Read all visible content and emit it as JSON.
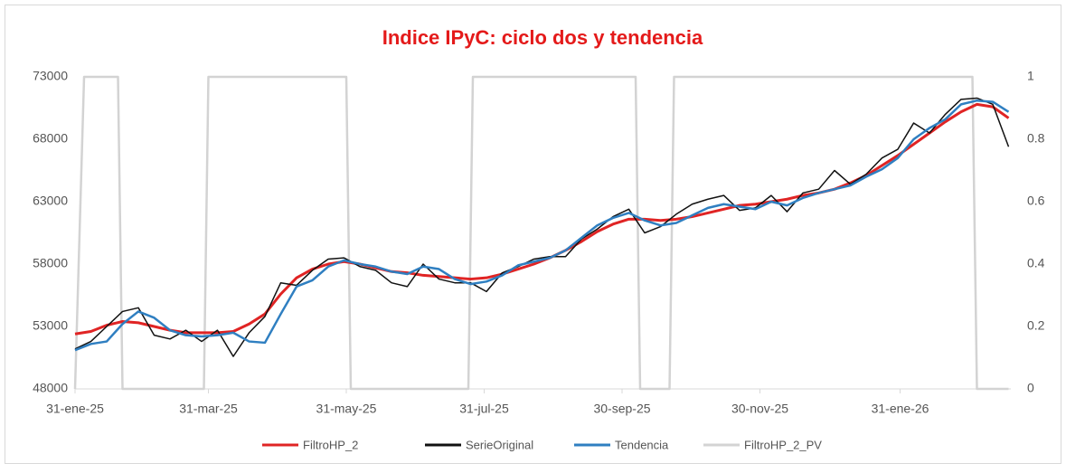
{
  "chart_data": {
    "type": "line",
    "title": "Indice IPyC:  ciclo dos y tendencia",
    "legend": "bottom",
    "grid": false,
    "x": [
      "2025-01-31",
      "2025-02-07",
      "2025-02-14",
      "2025-02-21",
      "2025-02-28",
      "2025-03-07",
      "2025-03-14",
      "2025-03-21",
      "2025-03-28",
      "2025-04-04",
      "2025-04-11",
      "2025-04-18",
      "2025-04-25",
      "2025-05-02",
      "2025-05-09",
      "2025-05-16",
      "2025-05-23",
      "2025-05-30",
      "2025-06-06",
      "2025-06-13",
      "2025-06-20",
      "2025-06-27",
      "2025-07-04",
      "2025-07-11",
      "2025-07-18",
      "2025-07-25",
      "2025-08-01",
      "2025-08-08",
      "2025-08-15",
      "2025-08-22",
      "2025-08-29",
      "2025-09-05",
      "2025-09-12",
      "2025-09-19",
      "2025-09-26",
      "2025-10-03",
      "2025-10-10",
      "2025-10-17",
      "2025-10-24",
      "2025-10-31",
      "2025-11-07",
      "2025-11-14",
      "2025-11-21",
      "2025-11-28",
      "2025-12-05",
      "2025-12-12",
      "2025-12-19",
      "2025-12-26",
      "2026-01-02",
      "2026-01-09",
      "2026-01-16",
      "2026-01-23",
      "2026-01-30",
      "2026-02-06",
      "2026-02-13",
      "2026-02-20",
      "2026-02-27",
      "2026-03-06",
      "2026-03-13",
      "2026-03-20"
    ],
    "xlim": [
      "2025-01-31",
      "2026-03-21"
    ],
    "xticks": [
      {
        "value": "2025-01-31",
        "label": "31-ene-25"
      },
      {
        "value": "2025-03-31",
        "label": "31-mar-25"
      },
      {
        "value": "2025-05-31",
        "label": "31-may-25"
      },
      {
        "value": "2025-07-31",
        "label": "31-jul-25"
      },
      {
        "value": "2025-09-30",
        "label": "30-sep-25"
      },
      {
        "value": "2025-11-30",
        "label": "30-nov-25"
      },
      {
        "value": "2026-01-31",
        "label": "31-ene-26"
      }
    ],
    "ylim": [
      48000,
      73000
    ],
    "yticks": [
      48000,
      53000,
      58000,
      63000,
      68000,
      73000
    ],
    "y2lim": [
      0,
      1
    ],
    "y2ticks": [
      0,
      0.2,
      0.4,
      0.6,
      0.8,
      1
    ],
    "series": [
      {
        "name": "FiltroHP_2",
        "color": "#e02424",
        "values": [
          52400,
          52600,
          53100,
          53400,
          53300,
          53000,
          52700,
          52500,
          52500,
          52500,
          52600,
          53200,
          54000,
          55600,
          56900,
          57600,
          58000,
          58200,
          58000,
          57700,
          57400,
          57300,
          57100,
          57000,
          56900,
          56800,
          56900,
          57200,
          57600,
          58000,
          58500,
          59100,
          59800,
          60600,
          61200,
          61600,
          61600,
          61500,
          61600,
          61800,
          62100,
          62400,
          62700,
          62800,
          63000,
          63200,
          63500,
          63700,
          64000,
          64500,
          65100,
          65900,
          66700,
          67600,
          68500,
          69400,
          70200,
          70800,
          70600,
          69700
        ]
      },
      {
        "name": "SerieOriginal",
        "color": "#111111",
        "values": [
          51200,
          51800,
          53000,
          54200,
          54500,
          52300,
          52000,
          52700,
          51800,
          52700,
          50600,
          52500,
          53800,
          56500,
          56300,
          57500,
          58400,
          58500,
          57800,
          57500,
          56500,
          56200,
          58000,
          56800,
          56500,
          56500,
          55800,
          57300,
          57800,
          58400,
          58600,
          58600,
          60000,
          60800,
          61800,
          62400,
          60500,
          61000,
          62000,
          62800,
          63200,
          63500,
          62300,
          62500,
          63500,
          62200,
          63700,
          64000,
          65500,
          64400,
          65200,
          66500,
          67200,
          69300,
          68500,
          70000,
          71200,
          71300,
          70800,
          67400
        ]
      },
      {
        "name": "Tendencia",
        "color": "#2f7fc1",
        "values": [
          51100,
          51600,
          51800,
          53200,
          54200,
          53700,
          52700,
          52300,
          52200,
          52300,
          52500,
          51800,
          51700,
          54000,
          56200,
          56700,
          57800,
          58300,
          58000,
          57800,
          57400,
          57200,
          57800,
          57600,
          56800,
          56400,
          56600,
          57100,
          57900,
          58200,
          58500,
          59100,
          60100,
          61100,
          61700,
          62100,
          61500,
          61100,
          61300,
          61900,
          62500,
          62800,
          62600,
          62400,
          63000,
          62700,
          63300,
          63700,
          64000,
          64300,
          65000,
          65600,
          66500,
          68000,
          68900,
          69600,
          70800,
          71100,
          71000,
          70200
        ]
      },
      {
        "name": "FiltroHP_2_PV",
        "color": "#d3d3d3",
        "axis": "y2",
        "x": [
          "2025-01-31",
          "2025-02-04",
          "2025-02-19",
          "2025-02-21",
          "2025-03-29",
          "2025-03-31",
          "2025-05-31",
          "2025-06-02",
          "2025-07-24",
          "2025-07-26",
          "2025-10-06",
          "2025-10-08",
          "2025-10-21",
          "2025-10-23",
          "2026-03-04",
          "2026-03-06",
          "2026-03-20"
        ],
        "values": [
          0,
          1,
          1,
          0,
          0,
          1,
          1,
          0,
          0,
          1,
          1,
          0,
          0,
          1,
          1,
          0,
          0
        ]
      }
    ]
  }
}
